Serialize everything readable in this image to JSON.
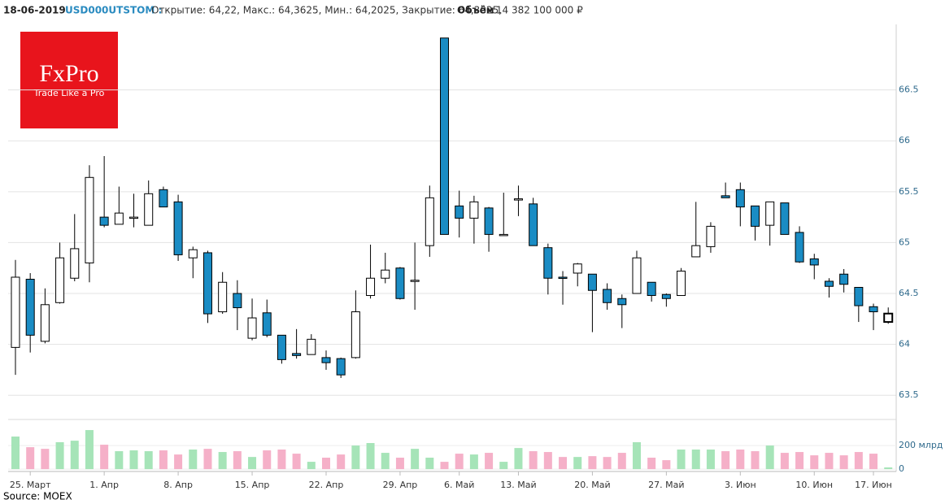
{
  "header": {
    "date": "18-06-2019",
    "ticker": "USD000UTSTOM :",
    "quote": "Открытие: 64,22, Макс.: 64,3625, Мин.: 64,2025, Закрытие: 64,3025,",
    "volume_label": "Объём",
    "volume_text": ": 14 382 100 000 ₽"
  },
  "logo": {
    "name": "FxPro",
    "slogan": "Trade Like a Pro"
  },
  "source": "Source: MOEX",
  "chart_data": {
    "type": "candlestick",
    "categories": [
      null,
      "25. Март",
      null,
      null,
      null,
      null,
      "1. Апр",
      null,
      null,
      null,
      null,
      "8. Апр",
      null,
      null,
      null,
      null,
      "15. Апр",
      null,
      null,
      null,
      null,
      "22. Апр",
      null,
      null,
      null,
      null,
      "29. Апр",
      null,
      null,
      null,
      "6. Май",
      null,
      null,
      null,
      "13. Май",
      null,
      null,
      null,
      null,
      "20. Май",
      null,
      null,
      null,
      null,
      "27. Май",
      null,
      null,
      null,
      null,
      "3. Июн",
      null,
      null,
      null,
      null,
      "10. Июн",
      null,
      null,
      null,
      "17. Июн",
      null
    ],
    "open": [
      63.97,
      64.64,
      64.03,
      64.41,
      64.65,
      64.8,
      65.25,
      65.18,
      65.24,
      65.17,
      65.52,
      65.4,
      64.85,
      64.9,
      64.32,
      64.5,
      64.06,
      64.31,
      64.09,
      63.91,
      63.9,
      63.87,
      63.86,
      63.87,
      64.48,
      64.65,
      64.75,
      64.62,
      64.97,
      67.01,
      65.36,
      65.24,
      65.34,
      65.07,
      65.42,
      65.38,
      64.95,
      64.66,
      64.7,
      64.69,
      64.54,
      64.45,
      64.5,
      64.61,
      64.49,
      64.48,
      64.86,
      64.96,
      65.46,
      65.52,
      65.36,
      65.17,
      65.39,
      65.1,
      64.84,
      64.62,
      64.69,
      64.56,
      64.37,
      64.22
    ],
    "high": [
      64.83,
      64.7,
      64.55,
      65.0,
      65.28,
      65.76,
      65.85,
      65.55,
      65.48,
      65.61,
      65.55,
      65.47,
      64.96,
      64.92,
      64.71,
      64.63,
      64.45,
      64.44,
      64.09,
      64.15,
      64.1,
      63.94,
      63.87,
      64.53,
      64.98,
      64.9,
      64.76,
      65.0,
      65.56,
      67.01,
      65.51,
      65.46,
      65.35,
      65.49,
      65.56,
      65.44,
      64.99,
      64.72,
      64.8,
      64.69,
      64.6,
      64.49,
      64.92,
      64.61,
      64.5,
      64.75,
      65.4,
      65.2,
      65.59,
      65.59,
      65.36,
      65.4,
      65.39,
      65.16,
      64.89,
      64.65,
      64.74,
      64.56,
      64.4,
      64.3625
    ],
    "low": [
      63.7,
      63.92,
      64.01,
      64.4,
      64.62,
      64.61,
      65.15,
      65.18,
      65.15,
      65.17,
      65.35,
      64.82,
      64.65,
      64.21,
      64.3,
      64.14,
      64.04,
      64.07,
      63.81,
      63.86,
      63.9,
      63.75,
      63.67,
      63.86,
      64.45,
      64.6,
      64.44,
      64.34,
      64.86,
      65.08,
      65.05,
      64.99,
      64.91,
      65.07,
      65.26,
      64.97,
      64.49,
      64.39,
      64.57,
      64.12,
      64.34,
      64.16,
      64.5,
      64.42,
      64.37,
      64.48,
      64.86,
      64.9,
      65.44,
      65.16,
      65.02,
      64.97,
      65.08,
      64.8,
      64.64,
      64.46,
      64.51,
      64.22,
      64.14,
      64.2025
    ],
    "close": [
      64.66,
      64.09,
      64.39,
      64.85,
      64.94,
      65.64,
      65.17,
      65.29,
      65.25,
      65.48,
      65.35,
      64.88,
      64.93,
      64.3,
      64.61,
      64.36,
      64.26,
      64.09,
      63.85,
      63.89,
      64.05,
      63.82,
      63.7,
      64.32,
      64.65,
      64.73,
      64.45,
      64.63,
      65.44,
      65.08,
      65.24,
      65.4,
      65.08,
      65.08,
      65.43,
      64.97,
      64.65,
      64.65,
      64.79,
      64.53,
      64.41,
      64.39,
      64.85,
      64.48,
      64.45,
      64.72,
      64.97,
      65.16,
      65.44,
      65.35,
      65.16,
      65.4,
      65.08,
      64.81,
      64.78,
      64.57,
      64.59,
      64.38,
      64.32,
      64.3025
    ],
    "volume": [
      276,
      186,
      172,
      228,
      241,
      331,
      207,
      152,
      159,
      152,
      159,
      124,
      166,
      172,
      145,
      152,
      103,
      159,
      166,
      131,
      62,
      97,
      124,
      200,
      221,
      138,
      97,
      172,
      97,
      62,
      131,
      124,
      138,
      62,
      179,
      152,
      145,
      103,
      103,
      110,
      103,
      138,
      228,
      97,
      76,
      166,
      166,
      166,
      152,
      166,
      152,
      200,
      138,
      145,
      117,
      138,
      117,
      145,
      131,
      14.3821
    ],
    "volume_colors": [
      "#a6e4b8",
      "#f5b0c8",
      "#f5b0c8",
      "#a6e4b8",
      "#a6e4b8",
      "#a6e4b8",
      "#f5b0c8",
      "#a6e4b8",
      "#a6e4b8",
      "#a6e4b8",
      "#f5b0c8",
      "#f5b0c8",
      "#a6e4b8",
      "#f5b0c8",
      "#a6e4b8",
      "#f5b0c8",
      "#a6e4b8",
      "#f5b0c8",
      "#f5b0c8",
      "#f5b0c8",
      "#a6e4b8",
      "#f5b0c8",
      "#f5b0c8",
      "#a6e4b8",
      "#a6e4b8",
      "#a6e4b8",
      "#f5b0c8",
      "#a6e4b8",
      "#a6e4b8",
      "#f5b0c8",
      "#f5b0c8",
      "#a6e4b8",
      "#f5b0c8",
      "#a6e4b8",
      "#a6e4b8",
      "#f5b0c8",
      "#f5b0c8",
      "#f5b0c8",
      "#a6e4b8",
      "#f5b0c8",
      "#f5b0c8",
      "#f5b0c8",
      "#a6e4b8",
      "#f5b0c8",
      "#f5b0c8",
      "#a6e4b8",
      "#a6e4b8",
      "#a6e4b8",
      "#f5b0c8",
      "#f5b0c8",
      "#f5b0c8",
      "#a6e4b8",
      "#f5b0c8",
      "#f5b0c8",
      "#f5b0c8",
      "#f5b0c8",
      "#f5b0c8",
      "#f5b0c8",
      "#f5b0c8",
      "#a6e4b8"
    ],
    "up_color": "#ffffff",
    "down_color": "#1a8cc4",
    "ylim": [
      63.31,
      67.08
    ],
    "yticks": [
      63.5,
      64,
      64.5,
      65,
      65.5,
      66,
      66.5
    ],
    "volume_lim": [
      -20,
      414
    ],
    "volume_ticks": [
      0,
      {
        "value": 200,
        "label": "200 млрд"
      }
    ],
    "grid": true
  }
}
